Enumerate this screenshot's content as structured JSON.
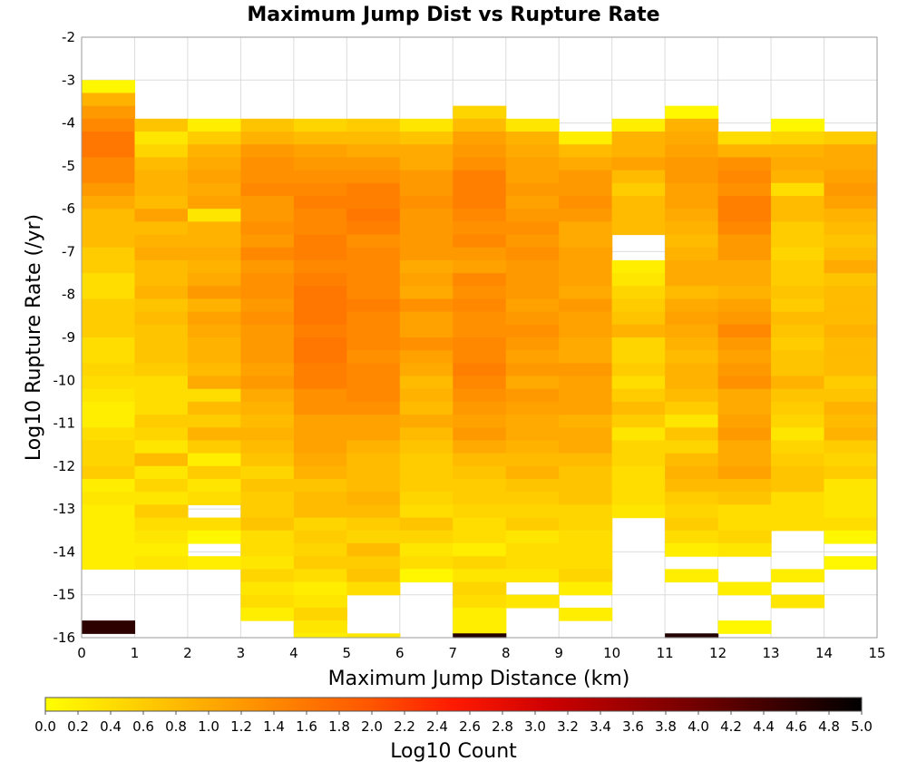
{
  "chart_data": {
    "type": "heatmap",
    "title": "Maximum Jump Dist vs Rupture Rate",
    "xlabel": "Maximum Jump Distance (km)",
    "ylabel": "Log10 Rupture Rate (/yr)",
    "colorbar_label": "Log10 Count",
    "xlim": [
      0,
      15
    ],
    "ylim": [
      -16,
      -2
    ],
    "x_ticks": [
      "0",
      "1",
      "2",
      "3",
      "4",
      "5",
      "6",
      "7",
      "8",
      "9",
      "10",
      "11",
      "12",
      "13",
      "14",
      "15"
    ],
    "y_ticks": [
      "-2",
      "-3",
      "-4",
      "-5",
      "-6",
      "-7",
      "-8",
      "-9",
      "-10",
      "-11",
      "-12",
      "-13",
      "-14",
      "-15",
      "-16"
    ],
    "colorbar_ticks": [
      "0.0",
      "0.2",
      "0.4",
      "0.6",
      "0.8",
      "1.0",
      "1.2",
      "1.4",
      "1.6",
      "1.8",
      "2.0",
      "2.2",
      "2.4",
      "2.6",
      "2.8",
      "3.0",
      "3.2",
      "3.4",
      "3.6",
      "3.8",
      "4.0",
      "4.2",
      "4.4",
      "4.6",
      "4.8",
      "5.0"
    ],
    "colorbar_range": [
      0,
      5
    ],
    "colormap": [
      "#ffff00",
      "#ffa500",
      "#ff0000",
      "#000000"
    ],
    "x_bin_width": 1,
    "y_bin_height": 0.3,
    "grid": true,
    "cells": [
      [
        -3.0,
        0.1,
        0.9,
        1.2,
        1.4,
        1.6,
        1.6,
        1.4,
        1.4,
        1.2,
        1.0,
        0.8,
        0.8,
        0.8,
        0.6,
        0.6,
        0.4,
        0.4,
        0.6,
        0.6,
        0.6,
        0.4,
        0.4,
        0.5,
        0.4,
        0.3,
        0.2,
        0.2,
        0.4,
        0.5,
        0.5,
        0.6,
        0.2,
        0.3,
        0.2,
        0.2,
        0.2,
        0.2,
        0.2,
        null,
        null,
        null,
        null,
        4.6
      ],
      [
        -3.9,
        0.7,
        0.3,
        0.5,
        0.8,
        0.9,
        0.9,
        0.8,
        1.1,
        0.8,
        0.9,
        1.0,
        0.8,
        0.8,
        0.9,
        0.7,
        0.8,
        0.7,
        0.7,
        0.7,
        0.6,
        0.4,
        0.4,
        0.4,
        0.6,
        0.5,
        0.3,
        0.8,
        0.3,
        0.5,
        0.3,
        0.6,
        0.4,
        0.3,
        0.2,
        0.3,
        null,
        null,
        null,
        null,
        null,
        null,
        4.8
      ],
      [
        -3.9,
        0.2,
        0.6,
        0.9,
        1.0,
        1.1,
        1.0,
        1.1,
        0.3,
        0.9,
        0.9,
        1.0,
        0.9,
        1.0,
        1.2,
        0.9,
        1.1,
        1.0,
        0.9,
        0.9,
        0.8,
        1.0,
        0.4,
        0.8,
        0.6,
        0.9,
        0.6,
        0.2,
        0.6,
        0.3,
        0.4,
        null,
        0.4,
        0.1,
        null,
        0.2,
        null,
        null,
        null,
        null,
        null,
        null,
        4.7
      ],
      [
        -3.9,
        0.7,
        0.9,
        1.2,
        1.3,
        1.3,
        1.4,
        1.2,
        1.2,
        1.3,
        1.2,
        1.4,
        1.2,
        1.3,
        1.3,
        1.2,
        1.3,
        1.2,
        1.2,
        1.2,
        1.1,
        1.2,
        1.0,
        0.9,
        0.8,
        0.9,
        0.8,
        0.7,
        0.5,
        0.7,
        0.6,
        0.6,
        0.7,
        0.4,
        0.4,
        0.3,
        0.5,
        0.3,
        0.4,
        0.2,
        null,
        null,
        4.9
      ],
      [
        -3.9,
        0.5,
        0.8,
        1.1,
        1.2,
        1.3,
        1.4,
        1.5,
        1.4,
        1.4,
        1.5,
        1.5,
        1.4,
        1.5,
        1.6,
        1.6,
        1.6,
        1.5,
        1.6,
        1.6,
        1.5,
        1.5,
        1.3,
        1.3,
        1.1,
        1.1,
        1.1,
        1.0,
        0.9,
        0.7,
        0.8,
        0.8,
        0.5,
        0.6,
        0.5,
        0.6,
        0.4,
        0.2,
        0.3,
        0.5,
        0.3,
        0.2,
        5.0
      ],
      [
        -3.9,
        0.6,
        0.8,
        1.0,
        1.2,
        1.3,
        1.5,
        1.5,
        1.6,
        1.5,
        1.3,
        1.4,
        1.4,
        1.4,
        1.4,
        1.5,
        1.4,
        1.4,
        1.4,
        1.3,
        1.4,
        1.4,
        1.4,
        1.3,
        1.1,
        1.1,
        0.9,
        0.8,
        0.8,
        0.8,
        0.9,
        0.8,
        0.6,
        0.5,
        0.8,
        0.6,
        0.7,
        0.4,
        null,
        null,
        null,
        0.3,
        4.9
      ],
      [
        -3.9,
        0.3,
        0.7,
        1.0,
        1.0,
        1.2,
        1.2,
        1.3,
        1.2,
        1.2,
        1.2,
        1.2,
        1.0,
        1.1,
        1.0,
        1.3,
        1.1,
        1.1,
        1.3,
        1.1,
        1.0,
        0.8,
        0.9,
        0.8,
        1.0,
        0.8,
        0.7,
        0.6,
        0.6,
        0.6,
        0.5,
        0.4,
        0.7,
        0.5,
        0.3,
        0.4,
        0.1,
        null,
        null,
        null,
        null,
        null,
        4.6
      ],
      [
        -3.6,
        0.5,
        0.8,
        1.1,
        1.2,
        1.3,
        1.5,
        1.5,
        1.5,
        1.4,
        1.3,
        1.4,
        1.2,
        1.1,
        1.4,
        1.3,
        1.4,
        1.3,
        1.3,
        1.4,
        1.4,
        1.5,
        1.4,
        1.3,
        1.2,
        1.1,
        1.2,
        1.0,
        0.8,
        0.7,
        0.6,
        0.6,
        0.5,
        0.4,
        0.4,
        0.2,
        0.5,
        0.3,
        0.5,
        0.4,
        0.2,
        0.2,
        4.7
      ],
      [
        -3.9,
        0.3,
        0.9,
        1.0,
        1.1,
        1.1,
        1.2,
        1.1,
        1.2,
        1.3,
        1.2,
        1.3,
        1.2,
        1.2,
        1.2,
        1.1,
        1.2,
        1.3,
        1.2,
        1.1,
        1.2,
        1.0,
        1.2,
        1.1,
        1.0,
        1.0,
        0.9,
        0.8,
        0.9,
        0.7,
        0.6,
        0.5,
        0.6,
        0.3,
        0.4,
        0.4,
        0.3,
        null,
        0.3,
        null,
        null,
        null,
        4.7
      ],
      [
        -4.2,
        0.2,
        0.8,
        1.0,
        1.2,
        1.2,
        1.3,
        1.2,
        1.0,
        1.0,
        1.1,
        1.1,
        1.1,
        1.0,
        1.2,
        1.1,
        1.1,
        1.0,
        1.0,
        1.2,
        1.1,
        1.1,
        1.1,
        0.9,
        1.0,
        1.0,
        0.8,
        0.7,
        0.7,
        0.7,
        0.5,
        0.5,
        0.4,
        0.4,
        0.4,
        0.5,
        0.2,
        null,
        0.2,
        null,
        null,
        null,
        4.7
      ],
      [
        -3.9,
        0.2,
        0.9,
        0.9,
        1.1,
        0.8,
        0.6,
        0.8,
        0.8,
        0.8,
        null,
        null,
        0.2,
        0.3,
        0.5,
        0.6,
        0.7,
        0.9,
        0.5,
        0.5,
        0.6,
        0.4,
        0.6,
        0.8,
        0.6,
        0.3,
        0.5,
        0.5,
        0.4,
        0.4,
        0.4,
        0.3,
        null,
        null,
        null,
        null,
        null,
        null,
        null,
        null,
        null,
        null,
        4.8
      ],
      [
        -3.6,
        0.1,
        0.9,
        1.0,
        1.1,
        1.2,
        1.2,
        1.1,
        1.1,
        1.0,
        0.9,
        0.8,
        0.9,
        1.0,
        1.0,
        0.8,
        1.0,
        1.1,
        1.0,
        0.9,
        0.8,
        0.9,
        0.9,
        0.8,
        0.6,
        0.3,
        0.7,
        0.5,
        0.8,
        0.9,
        0.8,
        0.6,
        0.5,
        0.6,
        0.4,
        0.2,
        null,
        0.2,
        null,
        null,
        null,
        null,
        4.7
      ],
      [
        -4.2,
        0.4,
        0.9,
        1.3,
        1.4,
        1.3,
        1.5,
        1.5,
        1.4,
        1.2,
        1.2,
        1.0,
        1.0,
        0.9,
        1.1,
        1.2,
        1.4,
        1.2,
        1.1,
        1.2,
        1.3,
        1.0,
        1.0,
        1.1,
        1.2,
        1.0,
        1.0,
        1.1,
        0.8,
        0.7,
        0.4,
        0.4,
        0.5,
        0.3,
        null,
        null,
        0.2,
        null,
        null,
        0.1,
        null,
        null,
        4.7
      ],
      [
        -3.9,
        0.1,
        0.5,
        0.9,
        1.0,
        0.9,
        0.4,
        0.8,
        0.8,
        0.6,
        0.6,
        0.5,
        0.6,
        0.6,
        0.7,
        0.6,
        0.8,
        0.7,
        0.6,
        0.7,
        0.7,
        0.9,
        0.7,
        0.6,
        0.5,
        0.3,
        0.5,
        0.6,
        0.7,
        0.7,
        0.4,
        0.4,
        0.4,
        null,
        null,
        null,
        0.2,
        null,
        0.3,
        null,
        null,
        null,
        4.8
      ],
      [
        -4.2,
        0.6,
        1.0,
        1.0,
        1.1,
        1.2,
        1.1,
        0.9,
        0.8,
        0.7,
        0.8,
        1.0,
        0.7,
        0.8,
        0.8,
        0.8,
        0.9,
        0.8,
        0.8,
        0.8,
        0.6,
        0.7,
        0.9,
        0.8,
        0.9,
        0.6,
        0.5,
        0.6,
        0.3,
        0.3,
        0.3,
        0.4,
        0.1,
        null,
        0.1,
        null,
        null,
        null,
        null,
        null,
        null,
        null,
        4.7
      ]
    ]
  }
}
